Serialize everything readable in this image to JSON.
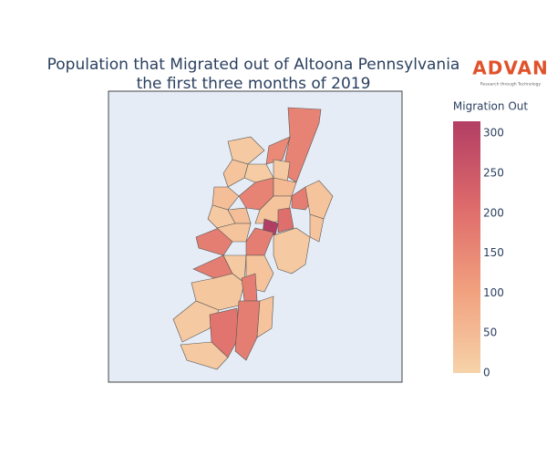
{
  "logo": {
    "text": "ADVAN",
    "tagline": "Research through Technology"
  },
  "chart_data": {
    "type": "choropleth",
    "title": [
      "Population that Migrated out of Altoona Pennsylvania",
      "the first three months of 2019"
    ],
    "values": [
      160,
      150,
      20,
      15,
      30,
      20,
      40,
      160,
      50,
      20,
      40,
      30,
      170,
      30,
      315,
      200,
      170,
      30,
      170,
      20,
      30,
      170,
      20,
      30,
      25,
      170,
      20,
      190,
      170,
      30,
      20
    ],
    "colorbar": {
      "title": "Migration Out",
      "clim": [
        0,
        315
      ],
      "ticks": [
        0,
        50,
        100,
        150,
        200,
        250,
        300
      ],
      "colorscale": [
        [
          0,
          "#f6d3a9"
        ],
        [
          0.33,
          "#f1a07e"
        ],
        [
          0.66,
          "#de6b6b"
        ],
        [
          1,
          "#b23e64"
        ]
      ]
    },
    "background": "#e5ecf6",
    "border_color": "#444444"
  }
}
